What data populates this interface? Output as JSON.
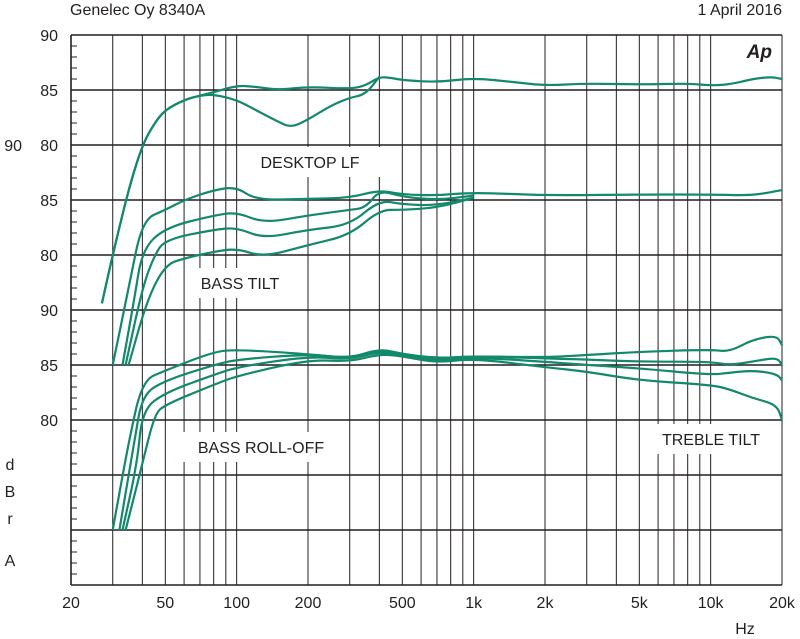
{
  "header": {
    "title": "Genelec Oy 8340A",
    "date": "1 April 2016",
    "logo": "Ap"
  },
  "chart_data": {
    "type": "line",
    "title": "Genelec Oy 8340A",
    "xlabel": "Hz",
    "ylabel_letters": [
      "d",
      "B",
      "r",
      "A"
    ],
    "xscale": "log",
    "xlim": [
      20,
      20000
    ],
    "x_ticks": [
      {
        "v": 20,
        "label": "20"
      },
      {
        "v": 50,
        "label": "50"
      },
      {
        "v": 100,
        "label": "100"
      },
      {
        "v": 200,
        "label": "200"
      },
      {
        "v": 500,
        "label": "500"
      },
      {
        "v": 1000,
        "label": "1k"
      },
      {
        "v": 2000,
        "label": "2k"
      },
      {
        "v": 5000,
        "label": "5k"
      },
      {
        "v": 10000,
        "label": "10k"
      },
      {
        "v": 20000,
        "label": "20k"
      }
    ],
    "x_grid": [
      30,
      40,
      50,
      60,
      70,
      80,
      90,
      100,
      200,
      300,
      400,
      500,
      600,
      700,
      800,
      900,
      1000,
      2000,
      3000,
      4000,
      5000,
      6000,
      7000,
      8000,
      9000,
      10000,
      20000
    ],
    "color": "#12896b",
    "grid": true,
    "panels": [
      {
        "annotation": "DESKTOP LF",
        "y_ticks": [
          {
            "v": 90,
            "label": "90"
          },
          {
            "v": 85,
            "label": "85"
          },
          {
            "v": 80,
            "label": "80"
          }
        ],
        "series": [
          {
            "name": "flat",
            "points": [
              [
                27,
                65.6
              ],
              [
                30,
                70
              ],
              [
                35,
                76
              ],
              [
                40,
                80
              ],
              [
                45,
                82
              ],
              [
                50,
                83.2
              ],
              [
                60,
                84.1
              ],
              [
                70,
                84.5
              ],
              [
                80,
                84.8
              ],
              [
                100,
                85.4
              ],
              [
                120,
                85.3
              ],
              [
                150,
                85.0
              ],
              [
                200,
                85.3
              ],
              [
                300,
                85.1
              ],
              [
                350,
                85.4
              ],
              [
                400,
                86.2
              ],
              [
                450,
                86.1
              ],
              [
                500,
                85.9
              ],
              [
                700,
                85.7
              ],
              [
                1000,
                86.1
              ],
              [
                1500,
                85.7
              ],
              [
                2000,
                85.4
              ],
              [
                3000,
                85.6
              ],
              [
                5000,
                85.5
              ],
              [
                8000,
                85.6
              ],
              [
                10000,
                85.4
              ],
              [
                12000,
                85.5
              ],
              [
                15000,
                86.0
              ],
              [
                18000,
                86.2
              ],
              [
                20000,
                86.0
              ]
            ]
          },
          {
            "name": "desktop",
            "points": [
              [
                27,
                65.6
              ],
              [
                30,
                70
              ],
              [
                35,
                76
              ],
              [
                40,
                80
              ],
              [
                45,
                82
              ],
              [
                50,
                83.2
              ],
              [
                60,
                84.1
              ],
              [
                70,
                84.5
              ],
              [
                80,
                84.6
              ],
              [
                100,
                84.1
              ],
              [
                120,
                83.2
              ],
              [
                150,
                82.1
              ],
              [
                170,
                81.6
              ],
              [
                200,
                82.3
              ],
              [
                250,
                83.6
              ],
              [
                300,
                84.3
              ],
              [
                350,
                84.6
              ],
              [
                400,
                86.2
              ]
            ]
          }
        ]
      },
      {
        "annotation": "BASS TILT",
        "y_ticks": [
          {
            "v": 90,
            "label": "90"
          },
          {
            "v": 85,
            "label": "85"
          },
          {
            "v": 80,
            "label": "80"
          }
        ],
        "series": [
          {
            "name": "tilt-0",
            "points": [
              [
                30,
                70
              ],
              [
                35,
                77
              ],
              [
                40,
                83.2
              ],
              [
                50,
                84.1
              ],
              [
                60,
                85
              ],
              [
                80,
                85.9
              ],
              [
                100,
                86.2
              ],
              [
                120,
                85.0
              ],
              [
                200,
                85.1
              ],
              [
                300,
                85.2
              ],
              [
                400,
                85.9
              ],
              [
                500,
                85.5
              ],
              [
                700,
                85.4
              ],
              [
                1000,
                85.7
              ],
              [
                2000,
                85.4
              ],
              [
                5000,
                85.5
              ],
              [
                10000,
                85.5
              ],
              [
                15000,
                85.4
              ],
              [
                20000,
                85.9
              ]
            ]
          },
          {
            "name": "tilt-1",
            "points": [
              [
                33,
                70
              ],
              [
                37,
                76
              ],
              [
                40,
                80.5
              ],
              [
                50,
                82.5
              ],
              [
                80,
                83.6
              ],
              [
                100,
                83.9
              ],
              [
                130,
                82.9
              ],
              [
                200,
                83.6
              ],
              [
                300,
                84.1
              ],
              [
                350,
                84.3
              ],
              [
                400,
                85.9
              ],
              [
                500,
                85.3
              ],
              [
                700,
                85.0
              ],
              [
                1000,
                85.4
              ]
            ]
          },
          {
            "name": "tilt-2",
            "points": [
              [
                34,
                70
              ],
              [
                40,
                77
              ],
              [
                45,
                80
              ],
              [
                50,
                81.4
              ],
              [
                80,
                82.3
              ],
              [
                100,
                82.5
              ],
              [
                130,
                81.5
              ],
              [
                200,
                82.3
              ],
              [
                300,
                82.7
              ],
              [
                400,
                85.0
              ],
              [
                500,
                84.6
              ],
              [
                700,
                84.5
              ],
              [
                1000,
                85.2
              ]
            ]
          },
          {
            "name": "tilt-3",
            "points": [
              [
                35,
                70
              ],
              [
                42,
                76
              ],
              [
                50,
                79.1
              ],
              [
                60,
                79.7
              ],
              [
                80,
                80.3
              ],
              [
                100,
                80.6
              ],
              [
                130,
                79.8
              ],
              [
                200,
                80.9
              ],
              [
                300,
                81.8
              ],
              [
                400,
                84.1
              ],
              [
                500,
                84.1
              ],
              [
                700,
                84.3
              ],
              [
                1000,
                85.2
              ]
            ]
          }
        ]
      },
      {
        "annotation": "BASS ROLL-OFF",
        "annotation2": "TREBLE TILT",
        "y_ticks": [
          {
            "v": 90,
            "label": "90"
          },
          {
            "v": 85,
            "label": "85"
          },
          {
            "v": 80,
            "label": "80"
          }
        ],
        "series": [
          {
            "name": "roll-0",
            "points": [
              [
                30,
                70
              ],
              [
                35,
                78
              ],
              [
                40,
                83.6
              ],
              [
                50,
                84.5
              ],
              [
                80,
                86.2
              ],
              [
                100,
                86.4
              ],
              [
                200,
                86.0
              ],
              [
                300,
                85.6
              ],
              [
                400,
                86.5
              ],
              [
                500,
                86.0
              ],
              [
                700,
                85.6
              ],
              [
                1000,
                85.8
              ],
              [
                2000,
                85.7
              ],
              [
                3000,
                85.9
              ],
              [
                5000,
                86.2
              ],
              [
                10000,
                86.4
              ],
              [
                12000,
                86.2
              ],
              [
                15000,
                87.3
              ],
              [
                19000,
                87.7
              ],
              [
                20000,
                86.8
              ]
            ]
          },
          {
            "name": "roll-1",
            "points": [
              [
                32,
                70
              ],
              [
                37,
                78
              ],
              [
                40,
                82.3
              ],
              [
                50,
                83.6
              ],
              [
                80,
                85.0
              ],
              [
                100,
                85.5
              ],
              [
                200,
                86.0
              ],
              [
                300,
                85.6
              ],
              [
                400,
                86.3
              ],
              [
                500,
                86.0
              ],
              [
                700,
                85.6
              ],
              [
                1000,
                85.8
              ],
              [
                2000,
                85.6
              ],
              [
                3000,
                85.5
              ],
              [
                5000,
                85.3
              ],
              [
                10000,
                85.3
              ],
              [
                12000,
                85.0
              ],
              [
                15000,
                85.3
              ],
              [
                19000,
                85.7
              ],
              [
                20000,
                85.0
              ]
            ]
          },
          {
            "name": "roll-2",
            "points": [
              [
                33,
                70
              ],
              [
                38,
                76
              ],
              [
                40,
                80.9
              ],
              [
                50,
                82.5
              ],
              [
                80,
                84.1
              ],
              [
                100,
                84.8
              ],
              [
                200,
                85.8
              ],
              [
                300,
                85.5
              ],
              [
                400,
                86.2
              ],
              [
                500,
                85.9
              ],
              [
                700,
                85.4
              ],
              [
                1000,
                85.7
              ],
              [
                2000,
                85.3
              ],
              [
                3000,
                85.0
              ],
              [
                5000,
                84.7
              ],
              [
                10000,
                84.1
              ],
              [
                12000,
                84.3
              ],
              [
                15000,
                84.5
              ],
              [
                19000,
                84.2
              ],
              [
                20000,
                83.6
              ]
            ]
          },
          {
            "name": "roll-3",
            "points": [
              [
                34,
                70
              ],
              [
                40,
                76
              ],
              [
                45,
                80.5
              ],
              [
                50,
                81.4
              ],
              [
                80,
                83.2
              ],
              [
                100,
                84.0
              ],
              [
                200,
                85.5
              ],
              [
                300,
                85.3
              ],
              [
                400,
                86.0
              ],
              [
                500,
                85.8
              ],
              [
                700,
                85.2
              ],
              [
                1000,
                85.6
              ],
              [
                2000,
                84.8
              ],
              [
                3000,
                84.4
              ],
              [
                5000,
                83.6
              ],
              [
                10000,
                83.2
              ],
              [
                12000,
                82.8
              ],
              [
                15000,
                82.0
              ],
              [
                19000,
                81.4
              ],
              [
                20000,
                80.0
              ]
            ]
          }
        ]
      }
    ]
  }
}
